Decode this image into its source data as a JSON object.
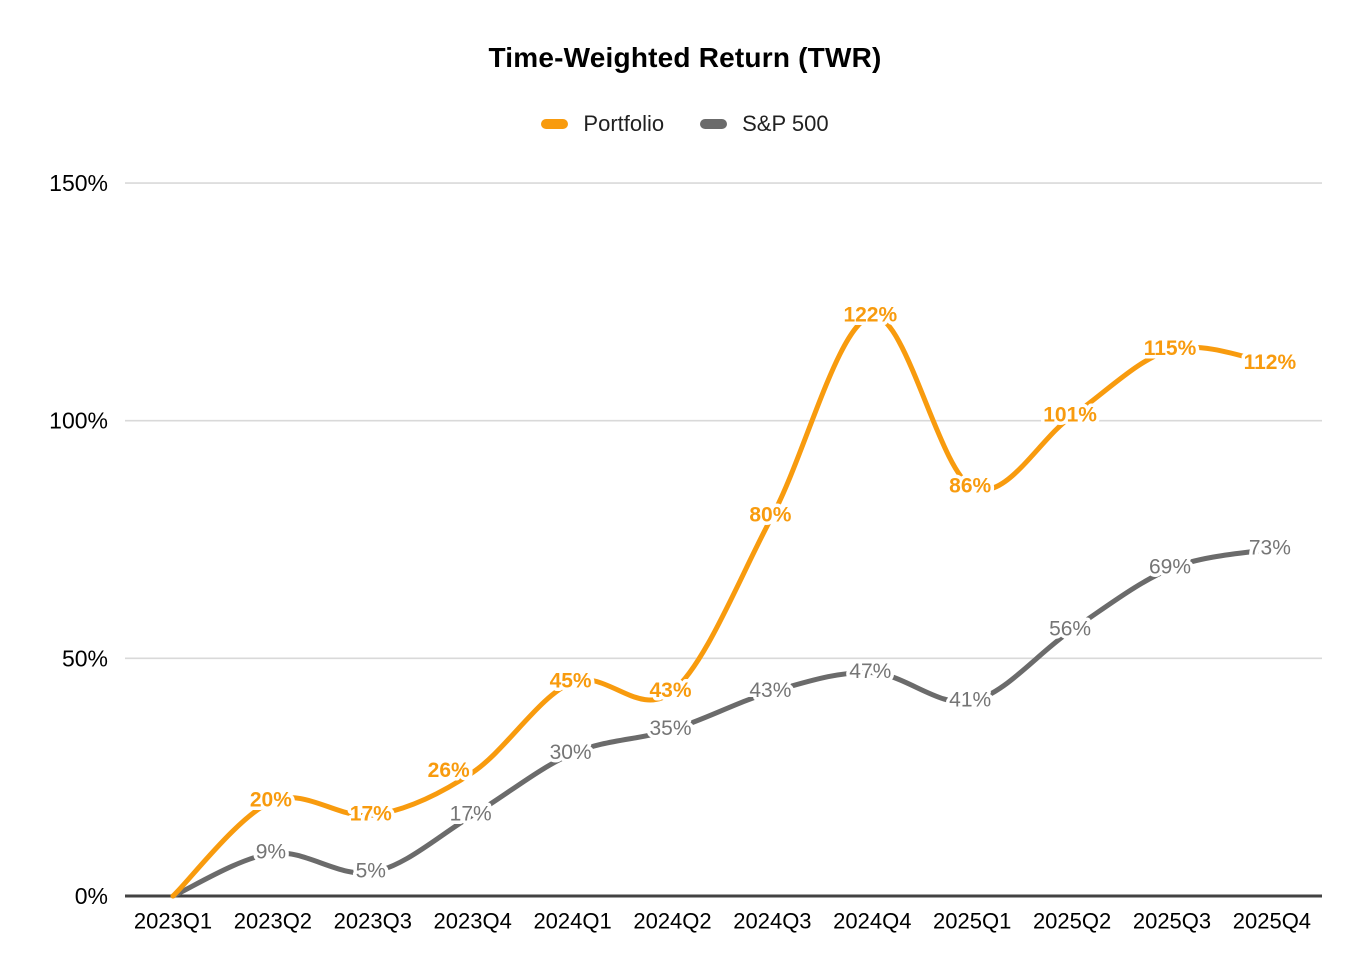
{
  "chart_data": {
    "type": "line",
    "title": "Time-Weighted Return (TWR)",
    "line_style": "smooth",
    "grid": true,
    "legend_position": "top",
    "categories": [
      "2023Q1",
      "2023Q2",
      "2023Q3",
      "2023Q4",
      "2024Q1",
      "2024Q2",
      "2024Q3",
      "2024Q4",
      "2025Q1",
      "2025Q2",
      "2025Q3",
      "2025Q4"
    ],
    "series": [
      {
        "name": "Portfolio",
        "color": "#F89B0E",
        "values": [
          0,
          20,
          17,
          26,
          45,
          43,
          80,
          122,
          86,
          101,
          115,
          112
        ],
        "data_labels": [
          "",
          "20%",
          "17%",
          "26%",
          "45%",
          "43%",
          "80%",
          "122%",
          "86%",
          "101%",
          "115%",
          "112%"
        ]
      },
      {
        "name": "S&P 500",
        "color": "#6B6B6B",
        "label_color": "#757575",
        "values": [
          0,
          9,
          5,
          17,
          30,
          35,
          43,
          47,
          41,
          56,
          69,
          73
        ],
        "data_labels": [
          "",
          "9%",
          "5%",
          "17%",
          "30%",
          "35%",
          "43%",
          "47%",
          "41%",
          "56%",
          "69%",
          "73%"
        ]
      }
    ],
    "ylim": [
      0,
      150
    ],
    "y_ticks": [
      0,
      50,
      100,
      150
    ],
    "y_tick_labels": [
      "0%",
      "50%",
      "100%",
      "150%"
    ],
    "y_tick_format": "percent",
    "xlabel": "",
    "ylabel": "",
    "colors": {
      "gridline": "#D9D9D9",
      "axis_line": "#424242",
      "tick_text": "#000000",
      "title_text": "#000000",
      "background": "#FFFFFF"
    }
  }
}
